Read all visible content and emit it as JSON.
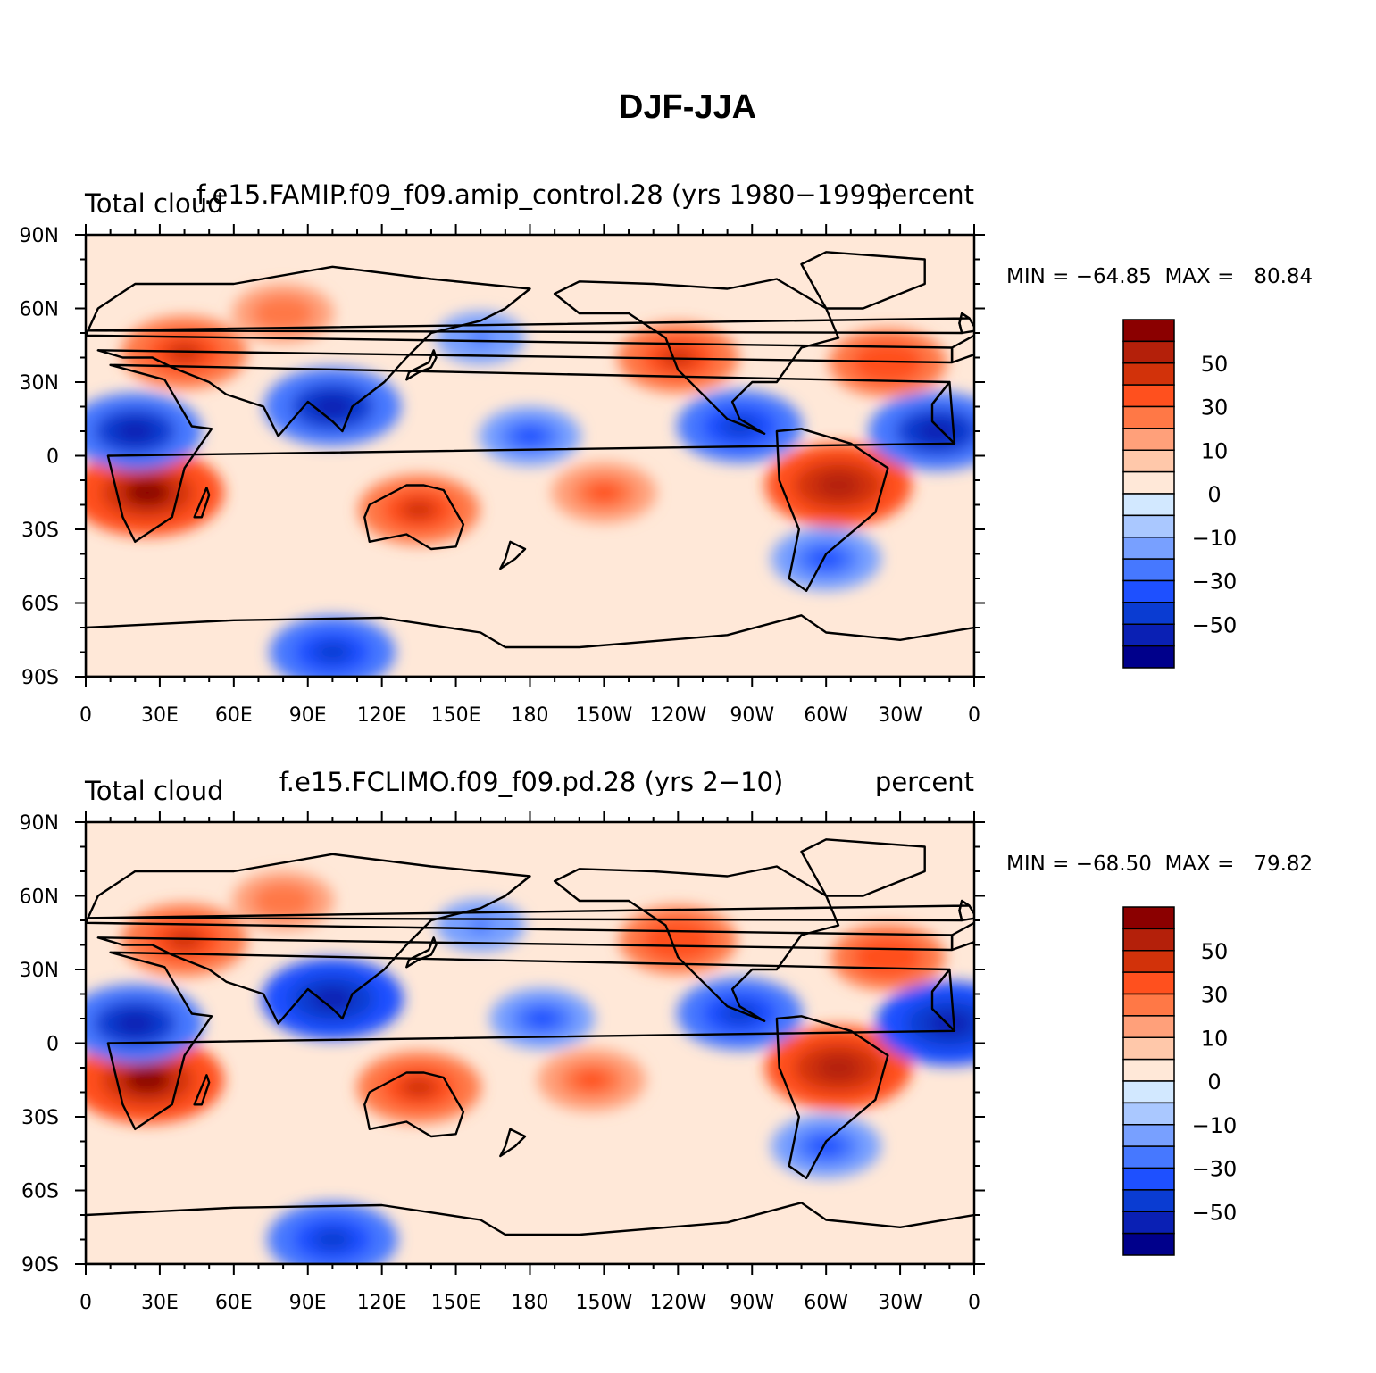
{
  "figure_title": "DJF-JJA",
  "colors": {
    "scale": [
      "#00008b",
      "#0a20b4",
      "#0a3cd2",
      "#1e50ff",
      "#4678ff",
      "#78a0ff",
      "#aac8ff",
      "#d2e8ff",
      "#ffe8d8",
      "#ffc8aa",
      "#ffa07a",
      "#ff7846",
      "#ff501e",
      "#d2320a",
      "#b4200a",
      "#8b0000"
    ]
  },
  "axes": {
    "x_ticks": [
      "0",
      "30E",
      "60E",
      "90E",
      "120E",
      "150E",
      "180",
      "150W",
      "120W",
      "90W",
      "60W",
      "30W",
      "0"
    ],
    "y_ticks": [
      "90N",
      "60N",
      "30N",
      "0",
      "30S",
      "60S",
      "90S"
    ]
  },
  "colorbar": {
    "labels": [
      "50",
      "30",
      "10",
      "0",
      "−10",
      "−30",
      "−50"
    ]
  },
  "panels": [
    {
      "left_label": "Total cloud",
      "center_label": "f.e15.FAMIP.f09_f09.amip_control.28 (yrs 1980−1999)",
      "right_label": "percent",
      "stats": "MIN = −64.85  MAX =   80.84"
    },
    {
      "left_label": "Total cloud",
      "center_label": "f.e15.FCLIMO.f09_f09.pd.28 (yrs 2−10)",
      "right_label": "percent",
      "stats": "MIN = −68.50  MAX =   79.82"
    }
  ],
  "chart_data": {
    "type": "heatmap",
    "title": "DJF-JJA",
    "units": "percent",
    "variable": "Total cloud",
    "projection": "cylindrical equidistant",
    "lon_range": [
      0,
      360
    ],
    "lat_range": [
      -90,
      90
    ],
    "contour_levels": [
      -60,
      -50,
      -40,
      -30,
      -20,
      -10,
      -5,
      0,
      5,
      10,
      20,
      30,
      40,
      50,
      60
    ],
    "panels": [
      {
        "name": "f.e15.FAMIP.f09_f09.amip_control.28 (yrs 1980−1999)",
        "min": -64.85,
        "max": 80.84,
        "features": [
          {
            "lon": 25,
            "lat": -15,
            "value": 62
          },
          {
            "lon": 305,
            "lat": -12,
            "value": 58
          },
          {
            "lon": 40,
            "lat": 42,
            "value": 45
          },
          {
            "lon": 135,
            "lat": -22,
            "value": 42
          },
          {
            "lon": 240,
            "lat": 40,
            "value": 42
          },
          {
            "lon": 325,
            "lat": 38,
            "value": 40
          },
          {
            "lon": 80,
            "lat": 58,
            "value": 30
          },
          {
            "lon": 210,
            "lat": -15,
            "value": 32
          },
          {
            "lon": 100,
            "lat": 20,
            "value": -52
          },
          {
            "lon": 20,
            "lat": 10,
            "value": -50
          },
          {
            "lon": 345,
            "lat": 10,
            "value": -52
          },
          {
            "lon": 180,
            "lat": 8,
            "value": -30
          },
          {
            "lon": 265,
            "lat": 12,
            "value": -45
          },
          {
            "lon": 300,
            "lat": -42,
            "value": -35
          },
          {
            "lon": 100,
            "lat": -80,
            "value": -45
          },
          {
            "lon": 160,
            "lat": 48,
            "value": -22
          }
        ]
      },
      {
        "name": "f.e15.FCLIMO.f09_f09.pd.28 (yrs 2−10)",
        "min": -68.5,
        "max": 79.82,
        "features": [
          {
            "lon": 25,
            "lat": -15,
            "value": 62
          },
          {
            "lon": 305,
            "lat": -10,
            "value": 58
          },
          {
            "lon": 40,
            "lat": 42,
            "value": 45
          },
          {
            "lon": 135,
            "lat": -18,
            "value": 44
          },
          {
            "lon": 240,
            "lat": 42,
            "value": 40
          },
          {
            "lon": 325,
            "lat": 35,
            "value": 38
          },
          {
            "lon": 80,
            "lat": 58,
            "value": 30
          },
          {
            "lon": 205,
            "lat": -15,
            "value": 34
          },
          {
            "lon": 100,
            "lat": 18,
            "value": -55
          },
          {
            "lon": 20,
            "lat": 8,
            "value": -52
          },
          {
            "lon": 350,
            "lat": 8,
            "value": -58
          },
          {
            "lon": 185,
            "lat": 10,
            "value": -32
          },
          {
            "lon": 265,
            "lat": 12,
            "value": -45
          },
          {
            "lon": 300,
            "lat": -42,
            "value": -35
          },
          {
            "lon": 100,
            "lat": -80,
            "value": -48
          },
          {
            "lon": 160,
            "lat": 48,
            "value": -22
          }
        ]
      }
    ]
  }
}
